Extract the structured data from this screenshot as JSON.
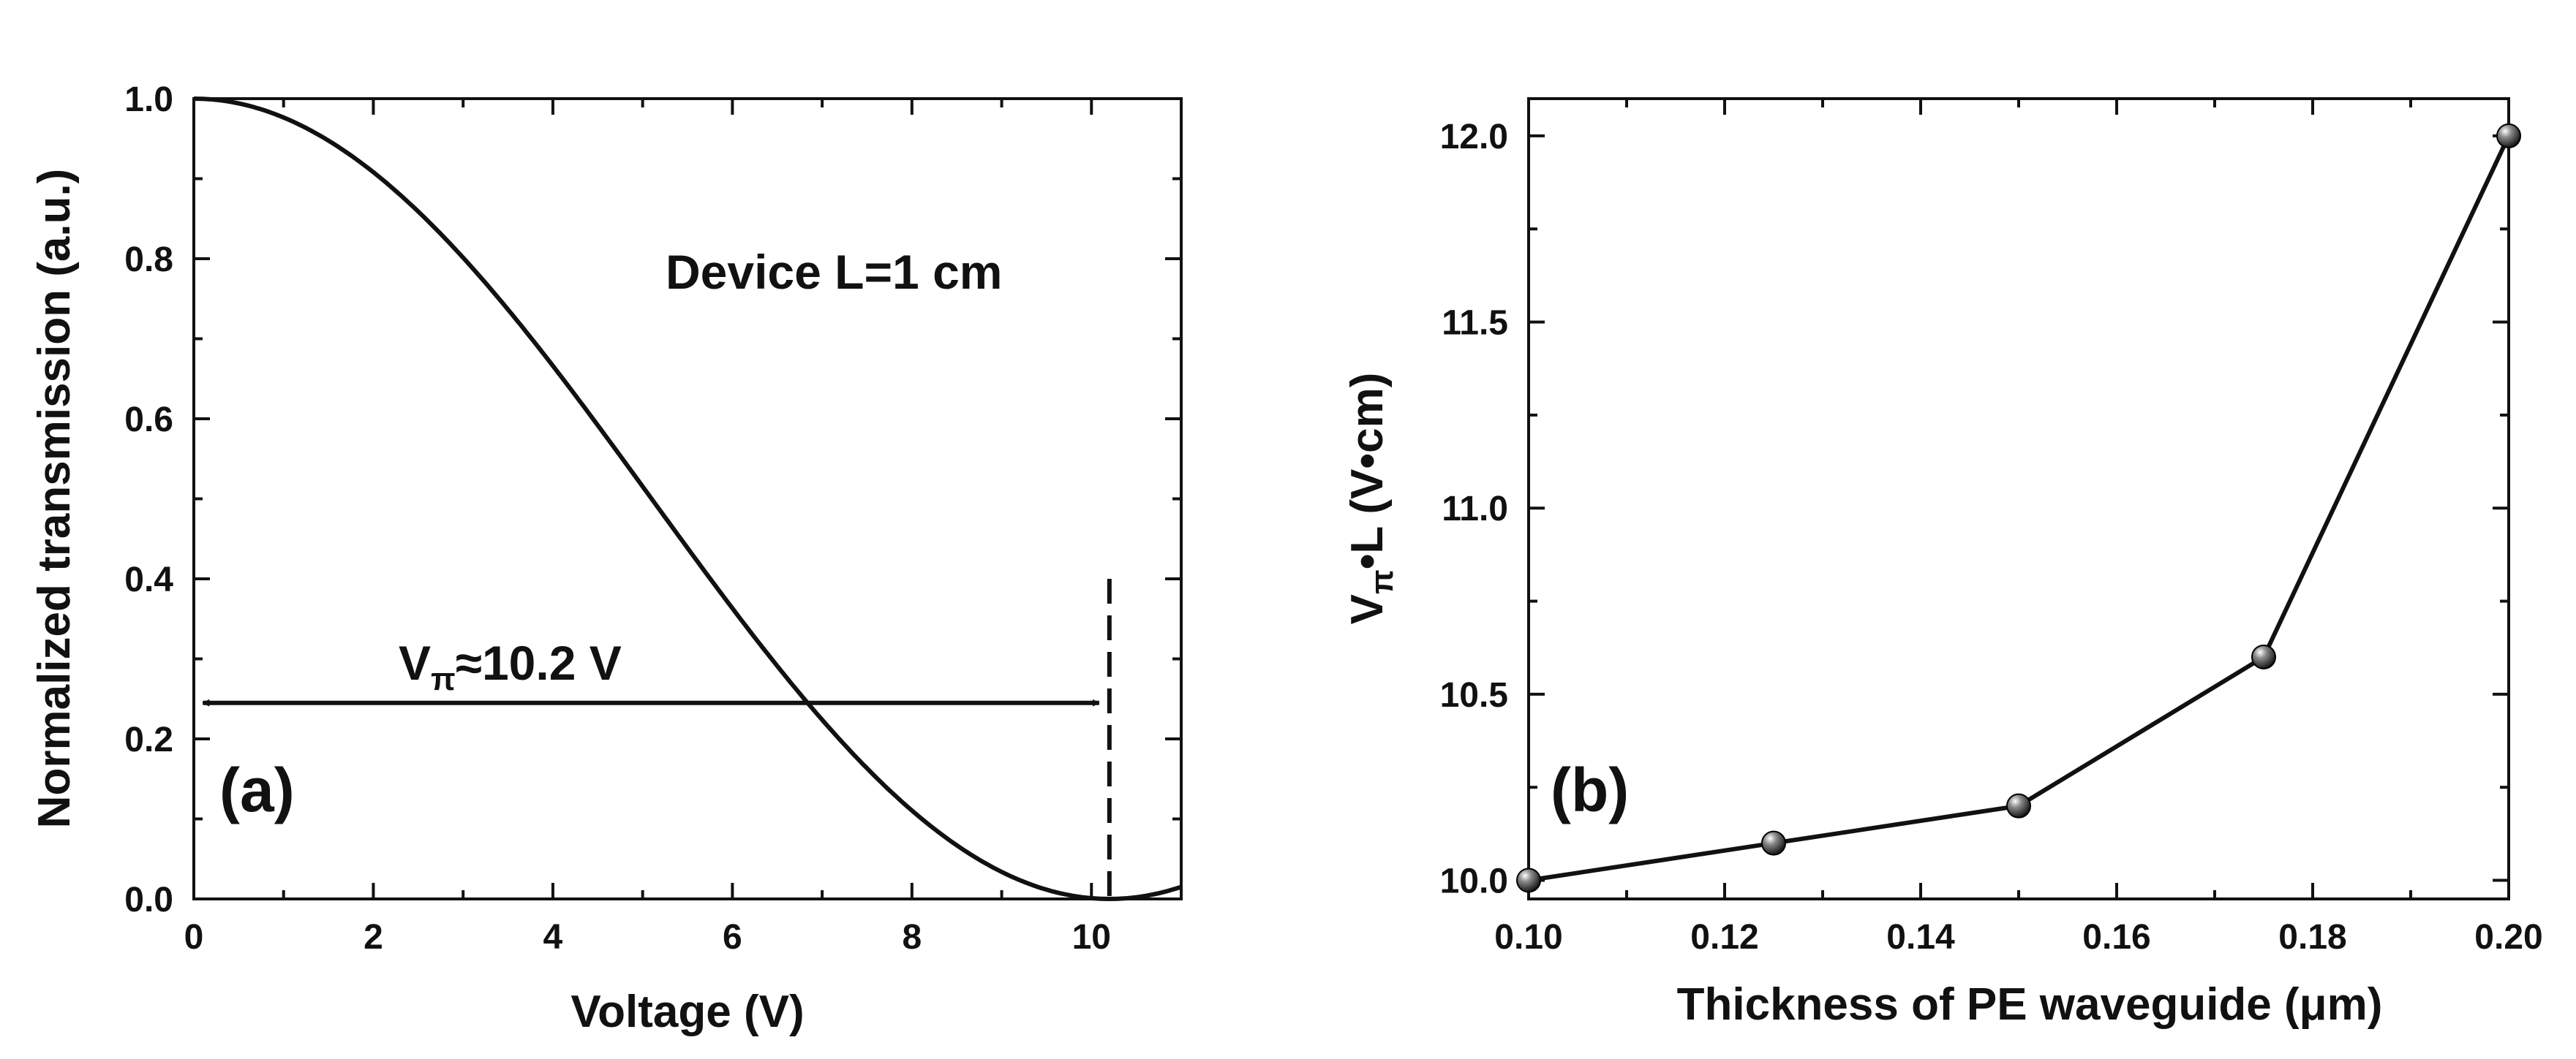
{
  "chart_data": [
    {
      "panel": "(a)",
      "type": "line",
      "xlabel": "Voltage (V)",
      "ylabel": "Normalized transmission (a.u.)",
      "xlim": [
        0,
        11
      ],
      "ylim": [
        0,
        1.0
      ],
      "x_ticks": [
        "0",
        "2",
        "4",
        "6",
        "8",
        "10"
      ],
      "y_ticks": [
        "0.0",
        "0.2",
        "0.4",
        "0.6",
        "0.8",
        "1.0"
      ],
      "series": [
        {
          "x": [
            0,
            0.5,
            1,
            1.5,
            2,
            2.5,
            3,
            3.5,
            4,
            4.5,
            5,
            5.5,
            6,
            6.5,
            7,
            7.5,
            8,
            8.5,
            9,
            9.5,
            10,
            10.2,
            10.5,
            11
          ],
          "values": [
            1.0,
            0.994,
            0.976,
            0.947,
            0.906,
            0.856,
            0.796,
            0.729,
            0.655,
            0.578,
            0.5,
            0.422,
            0.346,
            0.274,
            0.209,
            0.151,
            0.102,
            0.062,
            0.032,
            0.011,
            0.001,
            0.0,
            0.002,
            0.016
          ]
        }
      ],
      "annotations": {
        "device": "Device L=1 cm",
        "vpi_symbol": "V",
        "vpi_sub": "π",
        "vpi_value": "≈10.2 V",
        "vpi_marker_x": 10.2,
        "panel_label": "(a)"
      },
      "grid": false
    },
    {
      "panel": "(b)",
      "type": "line",
      "xlabel": "Thickness of PE waveguide (μm)",
      "ylabel_main": "V",
      "ylabel_sub": "π",
      "ylabel_rest": "•L (V•cm)",
      "xlim": [
        0.1,
        0.2
      ],
      "ylim": [
        9.95,
        12.1
      ],
      "x_ticks": [
        "0.10",
        "0.12",
        "0.14",
        "0.16",
        "0.18",
        "0.20"
      ],
      "y_ticks": [
        "10.0",
        "10.5",
        "11.0",
        "11.5",
        "12.0"
      ],
      "series": [
        {
          "x": [
            0.1,
            0.125,
            0.15,
            0.175,
            0.2
          ],
          "values": [
            10.0,
            10.1,
            10.2,
            10.6,
            12.0
          ],
          "markers": true
        }
      ],
      "annotations": {
        "panel_label": "(b)"
      },
      "grid": false
    }
  ]
}
